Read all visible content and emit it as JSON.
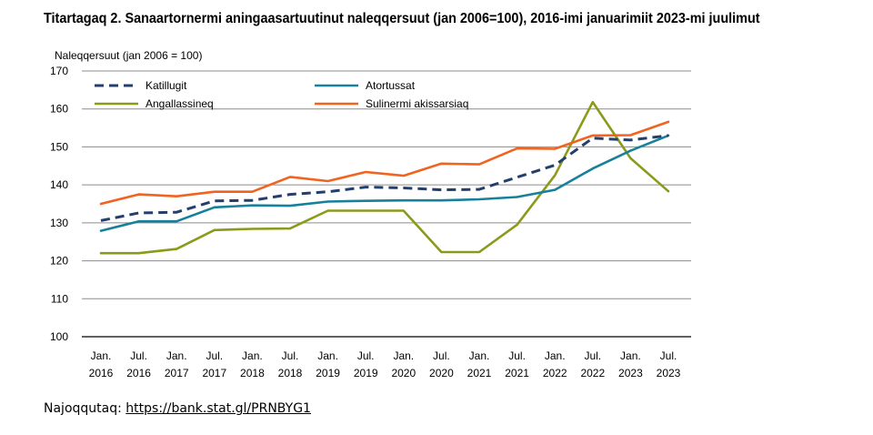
{
  "title": "Titartagaq 2. Sanaartornermi aningaasartuutinut naleqqersuut (jan 2006=100), 2016-imi januarimiit 2023-mi juulimut",
  "source": {
    "label": "Najoqqutaq:",
    "link": "https://bank.stat.gl/PRNBYG1"
  },
  "chart_data": {
    "type": "line",
    "title": "Titartagaq 2. Sanaartornermi aningaasartuutinut naleqqersuut (jan 2006=100), 2016-imi januarimiit 2023-mi juulimut",
    "ylabel": "Naleqqersuut (jan 2006 = 100)",
    "xlabel": "",
    "ylim": [
      100,
      170
    ],
    "yticks": [
      100,
      110,
      120,
      130,
      140,
      150,
      160,
      170
    ],
    "grid": true,
    "legend_position": "top",
    "categories": [
      [
        "Jan.",
        "2016"
      ],
      [
        "Jul.",
        "2016"
      ],
      [
        "Jan.",
        "2017"
      ],
      [
        "Jul.",
        "2017"
      ],
      [
        "Jan.",
        "2018"
      ],
      [
        "Jul.",
        "2018"
      ],
      [
        "Jan.",
        "2019"
      ],
      [
        "Jul.",
        "2019"
      ],
      [
        "Jan.",
        "2020"
      ],
      [
        "Jul.",
        "2020"
      ],
      [
        "Jan.",
        "2021"
      ],
      [
        "Jul.",
        "2021"
      ],
      [
        "Jan.",
        "2022"
      ],
      [
        "Jul.",
        "2022"
      ],
      [
        "Jan.",
        "2023"
      ],
      [
        "Jul.",
        "2023"
      ]
    ],
    "series": [
      {
        "name": "Katillugit",
        "color": "#243f6b",
        "dash": true,
        "values": [
          130.6,
          132.6,
          132.8,
          135.8,
          135.9,
          137.5,
          138.2,
          139.4,
          139.2,
          138.7,
          138.8,
          142.0,
          145.2,
          152.3,
          151.8,
          153.0
        ]
      },
      {
        "name": "Atortussat",
        "color": "#17809a",
        "dash": false,
        "values": [
          127.9,
          130.4,
          130.4,
          134.1,
          134.6,
          134.5,
          135.6,
          135.8,
          135.9,
          135.9,
          136.2,
          136.8,
          138.7,
          144.3,
          149.0,
          153.0
        ]
      },
      {
        "name": "Angallassineq",
        "color": "#8c9a1b",
        "dash": false,
        "values": [
          122.0,
          122.0,
          123.1,
          128.1,
          128.4,
          128.5,
          133.2,
          133.2,
          133.2,
          122.3,
          122.3,
          129.5,
          142.5,
          161.8,
          147.0,
          138.3
        ]
      },
      {
        "name": "Sulinermi akissarsiaq",
        "color": "#f0641f",
        "dash": false,
        "values": [
          135.0,
          137.5,
          137.0,
          138.2,
          138.2,
          142.1,
          141.0,
          143.4,
          142.4,
          145.6,
          145.4,
          149.6,
          149.5,
          153.0,
          153.1,
          156.6
        ]
      }
    ]
  }
}
